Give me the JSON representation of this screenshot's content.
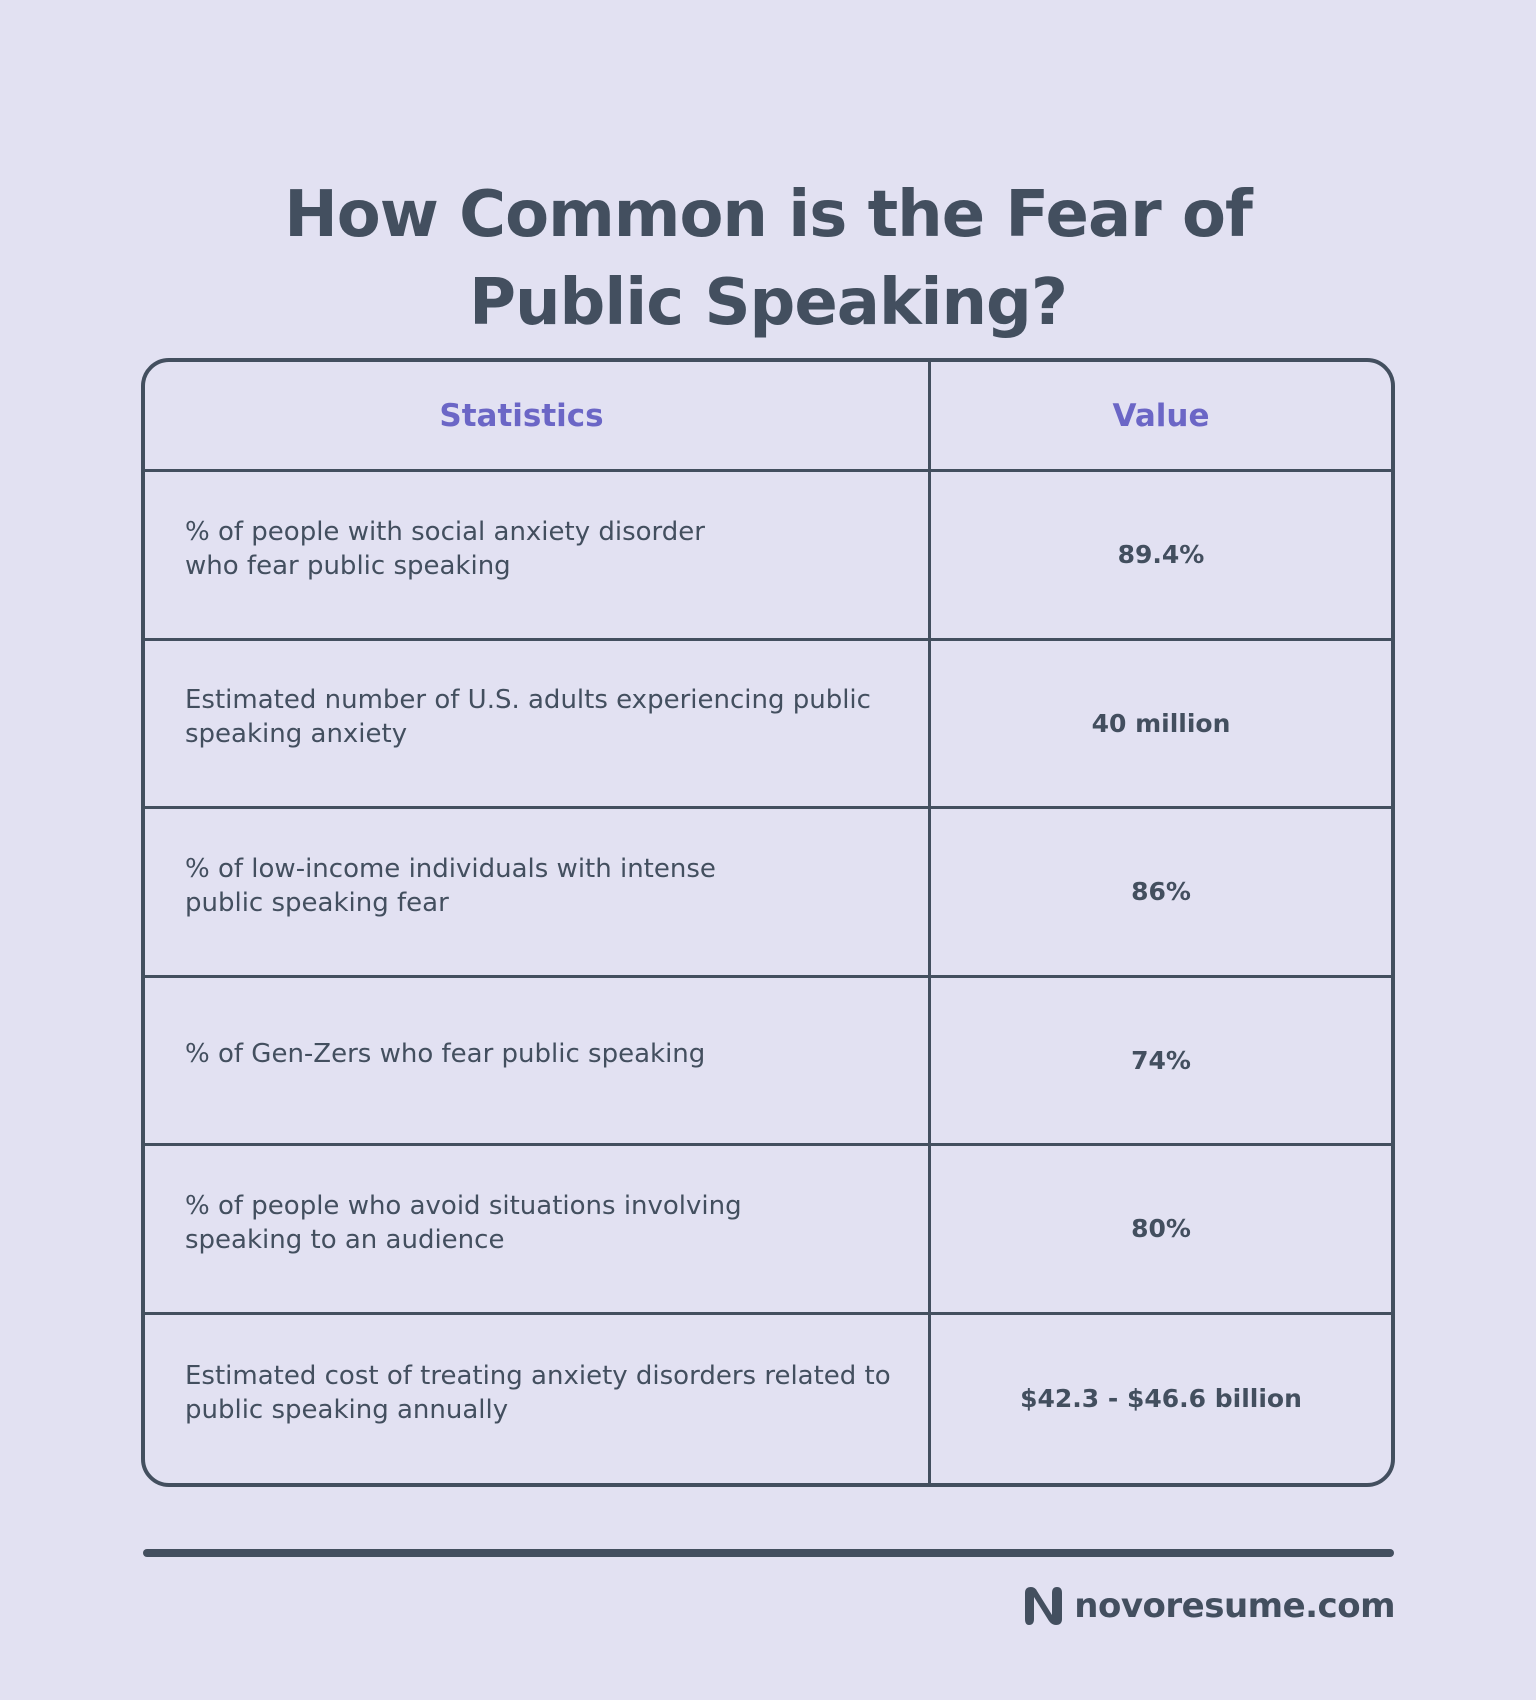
{
  "title": {
    "line1": "How Common is the Fear of",
    "line2": "Public Speaking?"
  },
  "table": {
    "headers": {
      "statistics": "Statistics",
      "value": "Value"
    },
    "rows": [
      {
        "statistic": "% of people with social anxiety disorder who fear public speaking",
        "value": "89.4%"
      },
      {
        "statistic": "Estimated number of U.S. adults experiencing public speaking anxiety",
        "value": "40 million"
      },
      {
        "statistic": "% of low-income individuals with intense public speaking fear",
        "value": "86%"
      },
      {
        "statistic": "% of Gen-Zers who fear public speaking",
        "value": "74%"
      },
      {
        "statistic": "% of people who avoid situations involving speaking to an audience",
        "value": "80%"
      },
      {
        "statistic": "Estimated cost of treating anxiety disorders related to public speaking annually",
        "value": "$42.3 - $46.6 billion"
      }
    ]
  },
  "footer": {
    "brand": "novoresume.com",
    "logo_icon": "novoresume-n-logo-icon"
  },
  "colors": {
    "background": "#e2e1f2",
    "text": "#434f5f",
    "accent": "#6b66c6"
  }
}
